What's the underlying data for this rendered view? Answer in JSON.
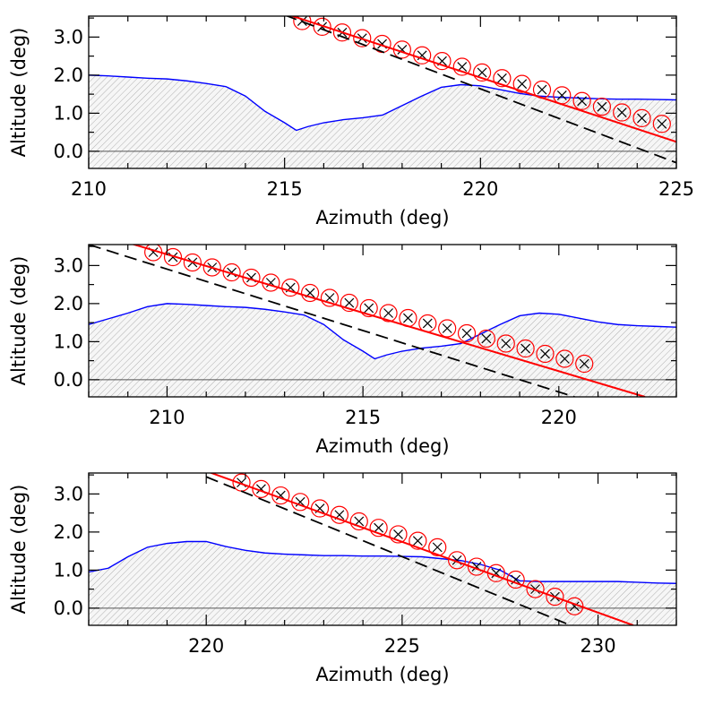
{
  "chart_data": [
    {
      "type": "line",
      "title": "",
      "xlabel": "Azimuth (deg)",
      "ylabel": "Altitude (deg)",
      "xlim": [
        210,
        225
      ],
      "ylim": [
        -0.45,
        3.55
      ],
      "xticks": [
        210,
        215,
        220,
        225
      ],
      "xtick_labels": [
        "210",
        "215",
        "220",
        "225"
      ],
      "yticks": [
        0.0,
        1.0,
        2.0,
        3.0
      ],
      "ytick_labels": [
        "0.0",
        "1.0",
        "2.0",
        "3.0"
      ],
      "series": [
        {
          "name": "horizon profile",
          "color": "#0000ff",
          "fill": "hatched",
          "x": [
            210.0,
            210.5,
            211.0,
            211.5,
            212.0,
            212.5,
            213.0,
            213.5,
            214.0,
            214.5,
            215.0,
            215.3,
            215.6,
            216.0,
            216.5,
            217.0,
            217.5,
            218.0,
            218.5,
            219.0,
            219.5,
            220.0,
            220.5,
            221.0,
            221.5,
            222.0,
            222.5,
            223.0,
            223.5,
            224.0,
            224.5,
            225.0
          ],
          "y": [
            2.0,
            1.98,
            1.95,
            1.92,
            1.9,
            1.85,
            1.78,
            1.7,
            1.45,
            1.05,
            0.75,
            0.55,
            0.65,
            0.75,
            0.83,
            0.88,
            0.95,
            1.2,
            1.45,
            1.68,
            1.75,
            1.72,
            1.62,
            1.52,
            1.45,
            1.42,
            1.4,
            1.38,
            1.37,
            1.37,
            1.36,
            1.35
          ]
        },
        {
          "name": "observed track (x)",
          "color": "#000000",
          "style": "markers",
          "marker": "x",
          "x": [
            215.45,
            215.96,
            216.47,
            216.98,
            217.49,
            218.0,
            218.51,
            219.02,
            219.53,
            220.04,
            220.55,
            221.06,
            221.57,
            222.08,
            222.59,
            223.1,
            223.61,
            224.12,
            224.63
          ],
          "y": [
            3.42,
            3.27,
            3.12,
            2.97,
            2.82,
            2.67,
            2.52,
            2.37,
            2.22,
            2.07,
            1.92,
            1.77,
            1.62,
            1.47,
            1.32,
            1.17,
            1.02,
            0.87,
            0.72
          ]
        },
        {
          "name": "red circle markers",
          "color": "#ff0000",
          "style": "markers",
          "marker": "circle",
          "x": [
            215.45,
            215.96,
            216.47,
            216.98,
            217.49,
            218.0,
            218.51,
            219.02,
            219.53,
            220.04,
            220.55,
            221.06,
            221.57,
            222.08,
            222.59,
            223.1,
            223.61,
            224.12,
            224.63
          ],
          "y": [
            3.42,
            3.27,
            3.12,
            2.97,
            2.82,
            2.67,
            2.52,
            2.37,
            2.22,
            2.07,
            1.92,
            1.77,
            1.62,
            1.47,
            1.32,
            1.17,
            1.02,
            0.87,
            0.72
          ]
        },
        {
          "name": "red fit line",
          "color": "#ff0000",
          "style": "solid",
          "x": [
            215.0,
            225.0
          ],
          "y": [
            3.62,
            0.25
          ]
        },
        {
          "name": "black dashed line",
          "color": "#000000",
          "style": "dashed",
          "x": [
            215.0,
            225.0
          ],
          "y": [
            3.58,
            -0.3
          ]
        }
      ]
    },
    {
      "type": "line",
      "title": "",
      "xlabel": "Azimuth (deg)",
      "ylabel": "Altitude (deg)",
      "xlim": [
        208,
        223
      ],
      "ylim": [
        -0.45,
        3.55
      ],
      "xticks": [
        210,
        215,
        220
      ],
      "xtick_labels": [
        "210",
        "215",
        "220"
      ],
      "yticks": [
        0.0,
        1.0,
        2.0,
        3.0
      ],
      "ytick_labels": [
        "0.0",
        "1.0",
        "2.0",
        "3.0"
      ],
      "series": [
        {
          "name": "horizon profile",
          "color": "#0000ff",
          "fill": "hatched",
          "x": [
            208.0,
            208.5,
            209.0,
            209.5,
            210.0,
            210.5,
            211.0,
            211.5,
            212.0,
            212.5,
            213.0,
            213.5,
            214.0,
            214.5,
            215.0,
            215.3,
            215.6,
            216.0,
            216.5,
            217.0,
            217.5,
            218.0,
            218.5,
            219.0,
            219.5,
            220.0,
            220.5,
            221.0,
            221.5,
            222.0,
            222.5,
            223.0
          ],
          "y": [
            1.45,
            1.6,
            1.75,
            1.92,
            2.0,
            1.98,
            1.95,
            1.92,
            1.9,
            1.85,
            1.78,
            1.7,
            1.45,
            1.05,
            0.75,
            0.55,
            0.65,
            0.75,
            0.83,
            0.88,
            0.95,
            1.2,
            1.45,
            1.68,
            1.75,
            1.72,
            1.62,
            1.52,
            1.45,
            1.42,
            1.4,
            1.38
          ]
        },
        {
          "name": "observed track (x)",
          "color": "#000000",
          "style": "markers",
          "marker": "x",
          "x": [
            209.65,
            210.15,
            210.65,
            211.15,
            211.65,
            212.15,
            212.65,
            213.15,
            213.65,
            214.15,
            214.65,
            215.15,
            215.65,
            216.15,
            216.65,
            217.15,
            217.65,
            218.15,
            218.65,
            219.15,
            219.65,
            220.15,
            220.65
          ],
          "y": [
            3.35,
            3.22,
            3.08,
            2.95,
            2.82,
            2.68,
            2.55,
            2.42,
            2.28,
            2.15,
            2.02,
            1.88,
            1.75,
            1.62,
            1.48,
            1.35,
            1.22,
            1.08,
            0.95,
            0.82,
            0.68,
            0.55,
            0.42
          ]
        },
        {
          "name": "red circle markers",
          "color": "#ff0000",
          "style": "markers",
          "marker": "circle",
          "x": [
            209.65,
            210.15,
            210.65,
            211.15,
            211.65,
            212.15,
            212.65,
            213.15,
            213.65,
            214.15,
            214.65,
            215.15,
            215.65,
            216.15,
            216.65,
            217.15,
            217.65,
            218.15,
            218.65,
            219.15,
            219.65,
            220.15,
            220.65
          ],
          "y": [
            3.35,
            3.22,
            3.08,
            2.95,
            2.82,
            2.68,
            2.55,
            2.42,
            2.28,
            2.15,
            2.02,
            1.88,
            1.75,
            1.62,
            1.48,
            1.35,
            1.22,
            1.08,
            0.95,
            0.82,
            0.68,
            0.55,
            0.42
          ]
        },
        {
          "name": "red fit line",
          "color": "#ff0000",
          "style": "solid",
          "x": [
            209.0,
            222.2
          ],
          "y": [
            3.6,
            -0.45
          ]
        },
        {
          "name": "black dashed line",
          "color": "#000000",
          "style": "dashed",
          "x": [
            208.0,
            220.4
          ],
          "y": [
            3.55,
            -0.45
          ]
        }
      ]
    },
    {
      "type": "line",
      "title": "",
      "xlabel": "Azimuth (deg)",
      "ylabel": "Altitude (deg)",
      "xlim": [
        217,
        232
      ],
      "ylim": [
        -0.45,
        3.55
      ],
      "xticks": [
        220,
        225,
        230
      ],
      "xtick_labels": [
        "220",
        "225",
        "230"
      ],
      "yticks": [
        0.0,
        1.0,
        2.0,
        3.0
      ],
      "ytick_labels": [
        "0.0",
        "1.0",
        "2.0",
        "3.0"
      ],
      "series": [
        {
          "name": "horizon profile",
          "color": "#0000ff",
          "fill": "hatched",
          "x": [
            217.0,
            217.5,
            218.0,
            218.5,
            219.0,
            219.5,
            220.0,
            220.5,
            221.0,
            221.5,
            222.0,
            222.5,
            223.0,
            223.5,
            224.0,
            224.5,
            225.0,
            225.5,
            226.0,
            226.5,
            227.0,
            227.5,
            228.0,
            228.5,
            229.0,
            229.5,
            230.0,
            230.5,
            231.0,
            231.5,
            232.0
          ],
          "y": [
            0.95,
            1.05,
            1.35,
            1.6,
            1.7,
            1.75,
            1.75,
            1.62,
            1.52,
            1.45,
            1.42,
            1.4,
            1.38,
            1.38,
            1.37,
            1.37,
            1.36,
            1.35,
            1.3,
            1.25,
            1.15,
            1.0,
            0.72,
            0.7,
            0.7,
            0.7,
            0.7,
            0.7,
            0.68,
            0.66,
            0.65
          ]
        },
        {
          "name": "observed track (x)",
          "color": "#000000",
          "style": "markers",
          "marker": "x",
          "x": [
            220.9,
            221.4,
            221.9,
            222.4,
            222.9,
            223.4,
            223.9,
            224.4,
            224.9,
            225.4,
            225.9,
            226.4,
            226.9,
            227.4,
            227.9,
            228.4,
            228.9,
            229.4
          ],
          "y": [
            3.3,
            3.13,
            2.96,
            2.79,
            2.62,
            2.45,
            2.28,
            2.11,
            1.94,
            1.77,
            1.6,
            1.26,
            1.09,
            0.92,
            0.75,
            0.5,
            0.3,
            0.05
          ]
        },
        {
          "name": "red circle markers",
          "color": "#ff0000",
          "style": "markers",
          "marker": "circle",
          "x": [
            220.9,
            221.4,
            221.9,
            222.4,
            222.9,
            223.4,
            223.9,
            224.4,
            224.9,
            225.4,
            225.9,
            226.4,
            226.9,
            227.4,
            227.9,
            228.4,
            228.9,
            229.4
          ],
          "y": [
            3.3,
            3.13,
            2.96,
            2.79,
            2.62,
            2.45,
            2.28,
            2.11,
            1.94,
            1.77,
            1.6,
            1.26,
            1.09,
            0.92,
            0.75,
            0.5,
            0.3,
            0.05
          ]
        },
        {
          "name": "red fit line",
          "color": "#ff0000",
          "style": "solid",
          "x": [
            220.0,
            230.9
          ],
          "y": [
            3.6,
            -0.45
          ]
        },
        {
          "name": "black dashed line",
          "color": "#000000",
          "style": "dashed",
          "x": [
            220.0,
            229.3
          ],
          "y": [
            3.45,
            -0.45
          ]
        }
      ]
    }
  ]
}
